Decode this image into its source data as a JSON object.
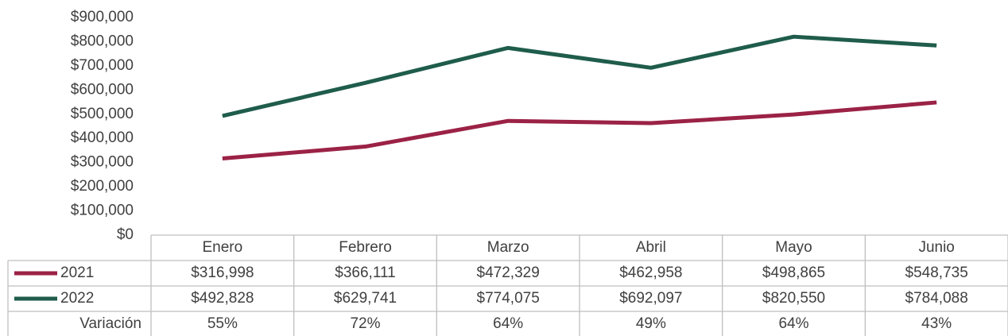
{
  "chart_data": {
    "type": "line",
    "categories": [
      "Enero",
      "Febrero",
      "Marzo",
      "Abril",
      "Mayo",
      "Junio"
    ],
    "series": [
      {
        "name": "2021",
        "color": "#9b2246",
        "values": [
          316998,
          366111,
          472329,
          462958,
          498865,
          548735
        ],
        "value_labels": [
          "$316,998",
          "$366,111",
          "$472,329",
          "$462,958",
          "$498,865",
          "$548,735"
        ]
      },
      {
        "name": "2022",
        "color": "#1f5c4b",
        "values": [
          492828,
          629741,
          774075,
          692097,
          820550,
          784088
        ],
        "value_labels": [
          "$492,828",
          "$629,741",
          "$774,075",
          "$692,097",
          "$820,550",
          "$784,088"
        ]
      }
    ],
    "variation": {
      "name": "Variación",
      "values": [
        55,
        72,
        64,
        49,
        64,
        43
      ],
      "value_labels": [
        "55%",
        "72%",
        "64%",
        "49%",
        "64%",
        "43%"
      ]
    },
    "ylim": [
      0,
      900000
    ],
    "yticks": [
      {
        "value": 0,
        "label": "$0"
      },
      {
        "value": 100000,
        "label": "$100,000"
      },
      {
        "value": 200000,
        "label": "$200,000"
      },
      {
        "value": 300000,
        "label": "$300,000"
      },
      {
        "value": 400000,
        "label": "$400,000"
      },
      {
        "value": 500000,
        "label": "$500,000"
      },
      {
        "value": 600000,
        "label": "$600,000"
      },
      {
        "value": 700000,
        "label": "$700,000"
      },
      {
        "value": 800000,
        "label": "$800,000"
      },
      {
        "value": 900000,
        "label": "$900,000"
      }
    ]
  }
}
